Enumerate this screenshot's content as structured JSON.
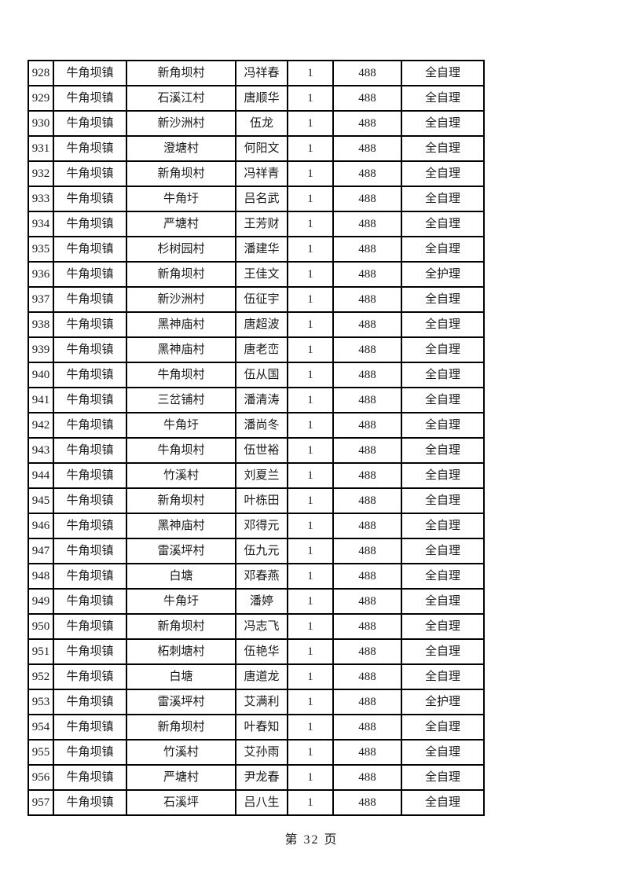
{
  "table": {
    "rows": [
      [
        "928",
        "牛角坝镇",
        "新角坝村",
        "冯祥春",
        "1",
        "488",
        "全自理"
      ],
      [
        "929",
        "牛角坝镇",
        "石溪江村",
        "唐顺华",
        "1",
        "488",
        "全自理"
      ],
      [
        "930",
        "牛角坝镇",
        "新沙洲村",
        "伍龙",
        "1",
        "488",
        "全自理"
      ],
      [
        "931",
        "牛角坝镇",
        "澄塘村",
        "何阳文",
        "1",
        "488",
        "全自理"
      ],
      [
        "932",
        "牛角坝镇",
        "新角坝村",
        "冯祥青",
        "1",
        "488",
        "全自理"
      ],
      [
        "933",
        "牛角坝镇",
        "牛角圩",
        "吕名武",
        "1",
        "488",
        "全自理"
      ],
      [
        "934",
        "牛角坝镇",
        "严塘村",
        "王芳财",
        "1",
        "488",
        "全自理"
      ],
      [
        "935",
        "牛角坝镇",
        "杉树园村",
        "潘建华",
        "1",
        "488",
        "全自理"
      ],
      [
        "936",
        "牛角坝镇",
        "新角坝村",
        "王佳文",
        "1",
        "488",
        "全护理"
      ],
      [
        "937",
        "牛角坝镇",
        "新沙洲村",
        "伍征宇",
        "1",
        "488",
        "全自理"
      ],
      [
        "938",
        "牛角坝镇",
        "黑神庙村",
        "唐超波",
        "1",
        "488",
        "全自理"
      ],
      [
        "939",
        "牛角坝镇",
        "黑神庙村",
        "唐老峦",
        "1",
        "488",
        "全自理"
      ],
      [
        "940",
        "牛角坝镇",
        "牛角坝村",
        "伍从国",
        "1",
        "488",
        "全自理"
      ],
      [
        "941",
        "牛角坝镇",
        "三岔铺村",
        "潘清涛",
        "1",
        "488",
        "全自理"
      ],
      [
        "942",
        "牛角坝镇",
        "牛角圩",
        "潘尚冬",
        "1",
        "488",
        "全自理"
      ],
      [
        "943",
        "牛角坝镇",
        "牛角坝村",
        "伍世裕",
        "1",
        "488",
        "全自理"
      ],
      [
        "944",
        "牛角坝镇",
        "竹溪村",
        "刘夏兰",
        "1",
        "488",
        "全自理"
      ],
      [
        "945",
        "牛角坝镇",
        "新角坝村",
        "叶栋田",
        "1",
        "488",
        "全自理"
      ],
      [
        "946",
        "牛角坝镇",
        "黑神庙村",
        "邓得元",
        "1",
        "488",
        "全自理"
      ],
      [
        "947",
        "牛角坝镇",
        "雷溪坪村",
        "伍九元",
        "1",
        "488",
        "全自理"
      ],
      [
        "948",
        "牛角坝镇",
        "白塘",
        "邓春燕",
        "1",
        "488",
        "全自理"
      ],
      [
        "949",
        "牛角坝镇",
        "牛角圩",
        "潘婷",
        "1",
        "488",
        "全自理"
      ],
      [
        "950",
        "牛角坝镇",
        "新角坝村",
        "冯志飞",
        "1",
        "488",
        "全自理"
      ],
      [
        "951",
        "牛角坝镇",
        "柘刺塘村",
        "伍艳华",
        "1",
        "488",
        "全自理"
      ],
      [
        "952",
        "牛角坝镇",
        "白塘",
        "唐道龙",
        "1",
        "488",
        "全自理"
      ],
      [
        "953",
        "牛角坝镇",
        "雷溪坪村",
        "艾满利",
        "1",
        "488",
        "全护理"
      ],
      [
        "954",
        "牛角坝镇",
        "新角坝村",
        "叶春知",
        "1",
        "488",
        "全自理"
      ],
      [
        "955",
        "牛角坝镇",
        "竹溪村",
        "艾孙雨",
        "1",
        "488",
        "全自理"
      ],
      [
        "956",
        "牛角坝镇",
        "严塘村",
        "尹龙春",
        "1",
        "488",
        "全自理"
      ],
      [
        "957",
        "牛角坝镇",
        "石溪坪",
        "吕八生",
        "1",
        "488",
        "全自理"
      ]
    ]
  },
  "footer": {
    "page_label": "第 32 页"
  }
}
